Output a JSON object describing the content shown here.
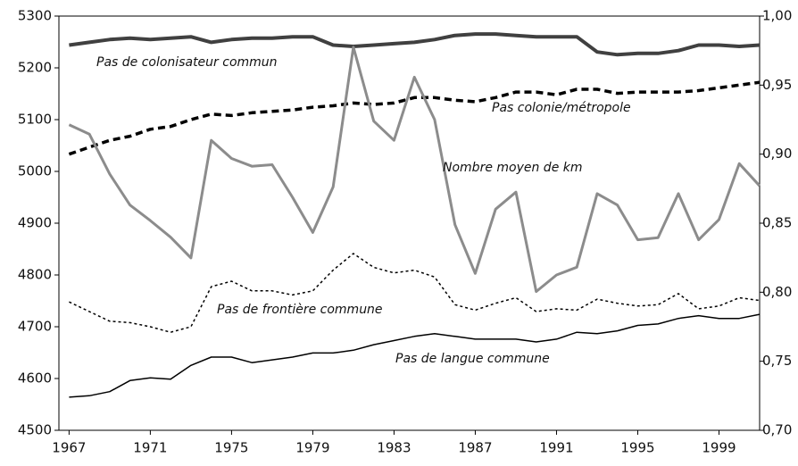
{
  "chart_data": {
    "type": "line",
    "x": [
      1967,
      1968,
      1969,
      1970,
      1971,
      1972,
      1973,
      1974,
      1975,
      1976,
      1977,
      1978,
      1979,
      1980,
      1981,
      1982,
      1983,
      1984,
      1985,
      1986,
      1987,
      1988,
      1989,
      1990,
      1991,
      1992,
      1993,
      1994,
      1995,
      1996,
      1997,
      1998,
      1999,
      2000,
      2001
    ],
    "xlim": [
      1966.5,
      2001
    ],
    "xticks": [
      1967,
      1971,
      1975,
      1979,
      1983,
      1987,
      1991,
      1995,
      1999
    ],
    "ylim": [
      4500,
      5300
    ],
    "yticks": [
      4500,
      4600,
      4700,
      4800,
      4900,
      5000,
      5100,
      5200,
      5300
    ],
    "y2lim": [
      0.7,
      1.0
    ],
    "y2ticks": [
      {
        "value": 0.7,
        "label": "0,70"
      },
      {
        "value": 0.75,
        "label": "0,75"
      },
      {
        "value": 0.8,
        "label": "0,80"
      },
      {
        "value": 0.85,
        "label": "0,85"
      },
      {
        "value": 0.9,
        "label": "0,90"
      },
      {
        "value": 0.95,
        "label": "0,95"
      },
      {
        "value": 1.0,
        "label": "1,00"
      }
    ],
    "series": [
      {
        "name": "Pas de colonisateur commun",
        "color": "#404040",
        "style": "solid",
        "axis": "y2",
        "values": [
          0.979,
          0.981,
          0.983,
          0.984,
          0.983,
          0.984,
          0.985,
          0.981,
          0.983,
          0.984,
          0.984,
          0.985,
          0.985,
          0.979,
          0.978,
          0.979,
          0.98,
          0.981,
          0.983,
          0.986,
          0.987,
          0.987,
          0.986,
          0.985,
          0.985,
          0.985,
          0.974,
          0.972,
          0.973,
          0.973,
          0.975,
          0.979,
          0.979,
          0.978,
          0.979
        ]
      },
      {
        "name": "Pas colonie/métropole",
        "color": "#000000",
        "style": "dashed",
        "axis": "y2",
        "values": [
          0.9,
          0.905,
          0.91,
          0.913,
          0.918,
          0.92,
          0.925,
          0.929,
          0.928,
          0.93,
          0.931,
          0.932,
          0.934,
          0.935,
          0.937,
          0.936,
          0.937,
          0.941,
          0.941,
          0.939,
          0.938,
          0.941,
          0.945,
          0.945,
          0.943,
          0.947,
          0.947,
          0.944,
          0.945,
          0.945,
          0.945,
          0.946,
          0.948,
          0.95,
          0.952
        ]
      },
      {
        "name": "Nombre moyen de km",
        "color": "#8c8c8c",
        "style": "solid",
        "values": [
          5090,
          5072,
          4995,
          4935,
          4905,
          4873,
          4833,
          5060,
          5025,
          5010,
          5013,
          4950,
          4882,
          4970,
          5240,
          5097,
          5060,
          5182,
          5100,
          4897,
          4803,
          4927,
          4960,
          4768,
          4800,
          4815,
          4957,
          4935,
          4868,
          4872,
          4957,
          4868,
          4907,
          5015,
          4972
        ]
      },
      {
        "name": "Pas de frontière commune",
        "color": "#000000",
        "style": "dotted",
        "axis": "y2",
        "values": [
          0.793,
          0.786,
          0.779,
          0.778,
          0.775,
          0.771,
          0.775,
          0.804,
          0.808,
          0.801,
          0.801,
          0.798,
          0.801,
          0.816,
          0.828,
          0.818,
          0.814,
          0.816,
          0.811,
          0.791,
          0.787,
          0.792,
          0.796,
          0.786,
          0.788,
          0.787,
          0.795,
          0.792,
          0.79,
          0.791,
          0.799,
          0.788,
          0.79,
          0.796,
          0.794
        ]
      },
      {
        "name": "Pas de langue commune",
        "color": "#000000",
        "style": "solid",
        "axis": "y2",
        "values": [
          0.724,
          0.725,
          0.728,
          0.736,
          0.738,
          0.737,
          0.747,
          0.753,
          0.753,
          0.749,
          0.751,
          0.753,
          0.756,
          0.756,
          0.758,
          0.762,
          0.765,
          0.768,
          0.77,
          0.768,
          0.766,
          0.766,
          0.766,
          0.764,
          0.766,
          0.771,
          0.77,
          0.772,
          0.776,
          0.777,
          0.781,
          0.783,
          0.781,
          0.781,
          0.784
        ]
      }
    ]
  }
}
